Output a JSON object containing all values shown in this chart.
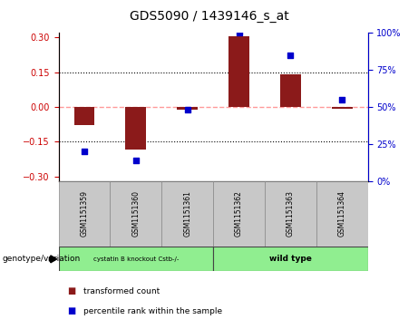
{
  "title": "GDS5090 / 1439146_s_at",
  "samples": [
    "GSM1151359",
    "GSM1151360",
    "GSM1151361",
    "GSM1151362",
    "GSM1151363",
    "GSM1151364"
  ],
  "red_bars": [
    -0.08,
    -0.185,
    -0.012,
    0.305,
    0.14,
    -0.008
  ],
  "blue_dots_percentile": [
    20,
    14,
    48,
    100,
    85,
    55
  ],
  "ylim_left": [
    -0.32,
    0.32
  ],
  "ylim_right": [
    0,
    100
  ],
  "yticks_left": [
    -0.3,
    -0.15,
    0,
    0.15,
    0.3
  ],
  "yticks_right": [
    0,
    25,
    50,
    75,
    100
  ],
  "group1_label": "cystatin B knockout Cstb-/-",
  "group2_label": "wild type",
  "group_row_color": "#90EE90",
  "sample_box_color": "#C8C8C8",
  "bar_color": "#8B1A1A",
  "dot_color": "#0000CC",
  "zero_line_color": "#FF9999",
  "grid_color": "#000000",
  "legend_label_red": "transformed count",
  "legend_label_blue": "percentile rank within the sample",
  "genotype_label": "genotype/variation",
  "right_ylabel_color": "#0000CC",
  "left_ylabel_color": "#CC0000",
  "bar_width": 0.4
}
